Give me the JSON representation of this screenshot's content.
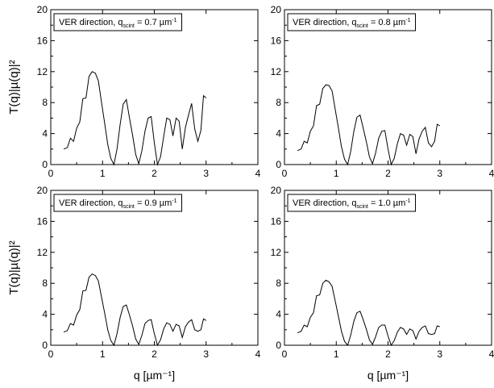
{
  "chart_data": [
    {
      "type": "line",
      "legend": {
        "prefix": "VER direction, q",
        "sub": "scint",
        "value": " = 0.7 µm",
        "sup": "-1"
      },
      "ylabel": "T(q)|µ(q)|²",
      "xlabel": "",
      "xlim": [
        0,
        4
      ],
      "ylim": [
        0,
        20
      ],
      "xticks": [
        "0",
        "1",
        "2",
        "3",
        "4"
      ],
      "yticks": [
        "0",
        "4",
        "8",
        "12",
        "16",
        "20"
      ],
      "x": [
        0.25,
        0.32,
        0.38,
        0.44,
        0.5,
        0.56,
        0.62,
        0.68,
        0.74,
        0.8,
        0.86,
        0.92,
        0.98,
        1.04,
        1.1,
        1.16,
        1.22,
        1.28,
        1.34,
        1.4,
        1.46,
        1.52,
        1.58,
        1.64,
        1.7,
        1.76,
        1.82,
        1.88,
        1.94,
        2.0,
        2.06,
        2.12,
        2.18,
        2.24,
        2.3,
        2.36,
        2.42,
        2.48,
        2.54,
        2.6,
        2.66,
        2.72,
        2.78,
        2.84,
        2.9,
        2.95,
        3.0
      ],
      "y": [
        2.0,
        2.2,
        3.4,
        3.0,
        4.7,
        5.5,
        8.5,
        8.6,
        11.4,
        12.0,
        11.8,
        10.8,
        8.0,
        5.4,
        2.6,
        0.8,
        0.0,
        2.0,
        5.2,
        7.8,
        8.4,
        6.0,
        3.8,
        1.3,
        0.1,
        1.8,
        4.3,
        6.0,
        6.2,
        2.8,
        0.0,
        1.0,
        3.6,
        6.0,
        5.8,
        3.7,
        6.0,
        5.6,
        2.0,
        4.8,
        6.4,
        7.9,
        4.6,
        3.0,
        4.4,
        8.9,
        8.6
      ]
    },
    {
      "type": "line",
      "legend": {
        "prefix": "VER direction, q",
        "sub": "scint",
        "value": " = 0.8 µm",
        "sup": "-1"
      },
      "ylabel": "",
      "xlabel": "",
      "xlim": [
        0,
        4
      ],
      "ylim": [
        0,
        20
      ],
      "xticks": [
        "0",
        "1",
        "2",
        "3",
        "4"
      ],
      "yticks": [
        "0",
        "4",
        "8",
        "12",
        "16",
        "20"
      ],
      "x": [
        0.25,
        0.32,
        0.38,
        0.44,
        0.5,
        0.56,
        0.62,
        0.68,
        0.74,
        0.8,
        0.86,
        0.92,
        0.98,
        1.04,
        1.1,
        1.16,
        1.22,
        1.28,
        1.34,
        1.4,
        1.46,
        1.52,
        1.58,
        1.64,
        1.7,
        1.76,
        1.82,
        1.88,
        1.94,
        2.0,
        2.06,
        2.12,
        2.18,
        2.24,
        2.3,
        2.36,
        2.42,
        2.48,
        2.54,
        2.6,
        2.66,
        2.72,
        2.78,
        2.84,
        2.9,
        2.95,
        3.0
      ],
      "y": [
        1.8,
        2.0,
        3.0,
        2.8,
        4.3,
        5.0,
        7.6,
        7.8,
        9.8,
        10.3,
        10.2,
        9.5,
        7.1,
        4.8,
        2.3,
        0.7,
        0.0,
        1.7,
        4.3,
        6.1,
        6.4,
        4.7,
        3.0,
        1.0,
        0.1,
        1.5,
        3.4,
        4.3,
        4.4,
        2.0,
        0.0,
        0.8,
        2.7,
        4.0,
        3.8,
        2.5,
        3.9,
        3.6,
        1.4,
        3.3,
        4.3,
        4.8,
        2.8,
        2.3,
        3.0,
        5.2,
        5.0
      ]
    },
    {
      "type": "line",
      "legend": {
        "prefix": "VER direction, q",
        "sub": "scint",
        "value": " = 0.9 µm",
        "sup": "-1"
      },
      "ylabel": "T(q)|µ(q)|²",
      "xlabel": "q [µm⁻¹]",
      "xlim": [
        0,
        4
      ],
      "ylim": [
        0,
        20
      ],
      "xticks": [
        "0",
        "1",
        "2",
        "3",
        "4"
      ],
      "yticks": [
        "0",
        "4",
        "8",
        "12",
        "16",
        "20"
      ],
      "x": [
        0.25,
        0.32,
        0.38,
        0.44,
        0.5,
        0.56,
        0.62,
        0.68,
        0.74,
        0.8,
        0.86,
        0.92,
        0.98,
        1.04,
        1.1,
        1.16,
        1.22,
        1.28,
        1.34,
        1.4,
        1.46,
        1.52,
        1.58,
        1.64,
        1.7,
        1.76,
        1.82,
        1.88,
        1.94,
        2.0,
        2.06,
        2.12,
        2.18,
        2.24,
        2.3,
        2.36,
        2.42,
        2.48,
        2.54,
        2.6,
        2.66,
        2.72,
        2.78,
        2.84,
        2.9,
        2.95,
        3.0
      ],
      "y": [
        1.7,
        1.9,
        2.8,
        2.6,
        3.9,
        4.6,
        7.0,
        7.1,
        8.8,
        9.2,
        9.0,
        8.3,
        6.2,
        4.2,
        2.0,
        0.6,
        0.0,
        1.5,
        3.6,
        5.0,
        5.2,
        3.9,
        2.5,
        0.8,
        0.1,
        1.3,
        2.8,
        3.2,
        3.3,
        1.5,
        0.0,
        0.7,
        2.1,
        2.9,
        2.7,
        1.8,
        2.7,
        2.5,
        1.0,
        2.4,
        3.0,
        3.3,
        2.0,
        1.8,
        2.0,
        3.4,
        3.2
      ]
    },
    {
      "type": "line",
      "legend": {
        "prefix": "VER direction, q",
        "sub": "scint",
        "value": " = 1.0 µm",
        "sup": "-1"
      },
      "ylabel": "",
      "xlabel": "q [µm⁻¹]",
      "xlim": [
        0,
        4
      ],
      "ylim": [
        0,
        20
      ],
      "xticks": [
        "0",
        "1",
        "2",
        "3",
        "4"
      ],
      "yticks": [
        "0",
        "4",
        "8",
        "12",
        "16",
        "20"
      ],
      "x": [
        0.25,
        0.32,
        0.38,
        0.44,
        0.5,
        0.56,
        0.62,
        0.68,
        0.74,
        0.8,
        0.86,
        0.92,
        0.98,
        1.04,
        1.1,
        1.16,
        1.22,
        1.28,
        1.34,
        1.4,
        1.46,
        1.52,
        1.58,
        1.64,
        1.7,
        1.76,
        1.82,
        1.88,
        1.94,
        2.0,
        2.06,
        2.12,
        2.18,
        2.24,
        2.3,
        2.36,
        2.42,
        2.48,
        2.54,
        2.6,
        2.66,
        2.72,
        2.78,
        2.84,
        2.9,
        2.95,
        3.0
      ],
      "y": [
        1.6,
        1.8,
        2.6,
        2.4,
        3.6,
        4.2,
        6.4,
        6.5,
        8.0,
        8.4,
        8.2,
        7.6,
        5.7,
        3.8,
        1.8,
        0.5,
        0.0,
        1.3,
        3.1,
        4.2,
        4.4,
        3.3,
        2.1,
        0.7,
        0.1,
        1.1,
        2.3,
        2.6,
        2.6,
        1.2,
        0.0,
        0.6,
        1.7,
        2.3,
        2.1,
        1.4,
        2.1,
        1.9,
        0.8,
        1.8,
        2.3,
        2.5,
        1.5,
        1.4,
        1.5,
        2.5,
        2.4
      ]
    }
  ]
}
